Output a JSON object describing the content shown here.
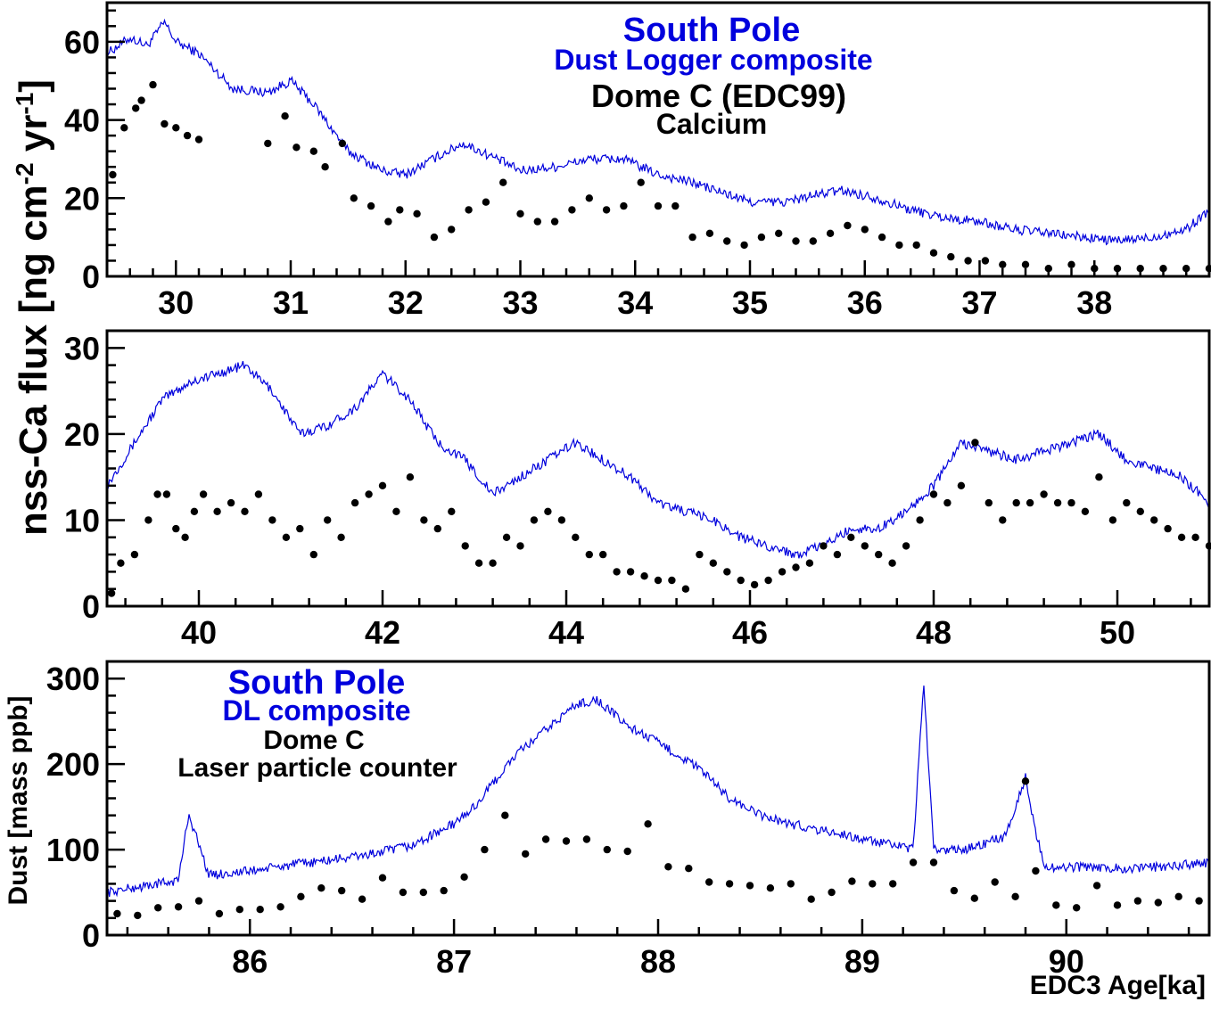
{
  "colors": {
    "dust_logger": "#0000dd",
    "dome_c": "#000000",
    "frame": "#000000"
  },
  "shared_ylabel_top": "nss-Ca flux [ng cm-2 yr-1]",
  "chart_data": [
    {
      "type": "line",
      "panel": "top",
      "annotations": [
        "South Pole",
        "Dust Logger composite",
        "Dome C (EDC99)",
        "Calcium"
      ],
      "xlim": [
        29.4,
        39.0
      ],
      "ylim": [
        0,
        70
      ],
      "xticks": [
        "30",
        "31",
        "32",
        "33",
        "34",
        "35",
        "36",
        "37",
        "38"
      ],
      "yticks": [
        "0",
        "20",
        "40",
        "60"
      ],
      "series": [
        {
          "name": "South Pole Dust Logger composite",
          "style": "line",
          "x": [
            29.4,
            29.6,
            29.75,
            29.9,
            30.0,
            30.2,
            30.5,
            30.8,
            31.0,
            31.2,
            31.5,
            31.8,
            32.0,
            32.3,
            32.5,
            32.8,
            33.0,
            33.3,
            33.6,
            33.9,
            34.2,
            34.5,
            34.8,
            35.0,
            35.3,
            35.6,
            35.8,
            36.1,
            36.4,
            36.7,
            37.0,
            37.3,
            37.6,
            37.9,
            38.2,
            38.5,
            38.8,
            39.0
          ],
          "y": [
            57,
            61,
            59,
            65,
            60,
            57,
            48,
            47,
            50,
            44,
            32,
            27,
            26,
            31,
            34,
            30,
            27,
            28,
            30,
            30,
            26,
            24,
            21,
            19,
            19,
            21,
            22,
            20,
            17,
            15,
            14,
            12,
            11,
            10,
            9,
            10,
            12,
            17
          ]
        },
        {
          "name": "Dome C (EDC99) Calcium",
          "style": "markers",
          "x": [
            29.45,
            29.55,
            29.65,
            29.7,
            29.8,
            29.9,
            30.0,
            30.1,
            30.2,
            30.8,
            30.95,
            31.05,
            31.2,
            31.3,
            31.45,
            31.55,
            31.7,
            31.85,
            31.95,
            32.1,
            32.25,
            32.4,
            32.55,
            32.7,
            32.85,
            33.0,
            33.15,
            33.3,
            33.45,
            33.6,
            33.75,
            33.9,
            34.05,
            34.2,
            34.35,
            34.5,
            34.65,
            34.8,
            34.95,
            35.1,
            35.25,
            35.4,
            35.55,
            35.7,
            35.85,
            36.0,
            36.15,
            36.3,
            36.45,
            36.6,
            36.75,
            36.9,
            37.05,
            37.2,
            37.4,
            37.6,
            37.8,
            38.0,
            38.2,
            38.4,
            38.6,
            38.8,
            39.0
          ],
          "y": [
            26,
            38,
            43,
            45,
            49,
            39,
            38,
            36,
            35,
            34,
            41,
            33,
            32,
            28,
            34,
            20,
            18,
            14,
            17,
            16,
            10,
            12,
            17,
            19,
            24,
            16,
            14,
            14,
            17,
            20,
            17,
            18,
            24,
            18,
            18,
            10,
            11,
            9,
            8,
            10,
            11,
            9,
            9,
            11,
            13,
            12,
            10,
            8,
            8,
            6,
            5,
            4,
            4,
            3,
            3,
            2,
            3,
            2,
            2,
            2,
            2,
            2,
            2
          ]
        }
      ]
    },
    {
      "type": "line",
      "panel": "middle",
      "xlim": [
        39.0,
        51.0
      ],
      "ylim": [
        0,
        32
      ],
      "xticks": [
        "40",
        "42",
        "44",
        "46",
        "48",
        "50"
      ],
      "yticks": [
        "0",
        "10",
        "20",
        "30"
      ],
      "series": [
        {
          "name": "South Pole Dust Logger composite",
          "style": "line",
          "x": [
            39.0,
            39.3,
            39.6,
            39.9,
            40.2,
            40.5,
            40.8,
            41.1,
            41.4,
            41.7,
            42.0,
            42.3,
            42.6,
            42.9,
            43.2,
            43.5,
            43.8,
            44.1,
            44.4,
            44.7,
            45.0,
            45.3,
            45.6,
            45.9,
            46.2,
            46.5,
            46.8,
            47.1,
            47.4,
            47.7,
            48.0,
            48.3,
            48.6,
            48.9,
            49.2,
            49.5,
            49.8,
            50.1,
            50.4,
            50.7,
            51.0
          ],
          "y": [
            14,
            19,
            24,
            26,
            27,
            28,
            25,
            20,
            21,
            23,
            27,
            24,
            19,
            17,
            13,
            15,
            17,
            19,
            17,
            15,
            12,
            11,
            10,
            8,
            7,
            6,
            7,
            9,
            9,
            11,
            14,
            19,
            18,
            17,
            18,
            19,
            20,
            17,
            16,
            15,
            12
          ]
        },
        {
          "name": "Dome C (EDC99) Calcium",
          "style": "markers",
          "x": [
            39.05,
            39.15,
            39.3,
            39.45,
            39.55,
            39.65,
            39.75,
            39.85,
            39.95,
            40.05,
            40.2,
            40.35,
            40.5,
            40.65,
            40.8,
            40.95,
            41.1,
            41.25,
            41.4,
            41.55,
            41.7,
            41.85,
            42.0,
            42.15,
            42.3,
            42.45,
            42.6,
            42.75,
            42.9,
            43.05,
            43.2,
            43.35,
            43.5,
            43.65,
            43.8,
            43.95,
            44.1,
            44.25,
            44.4,
            44.55,
            44.7,
            44.85,
            45.0,
            45.15,
            45.3,
            45.45,
            45.6,
            45.75,
            45.9,
            46.05,
            46.2,
            46.35,
            46.5,
            46.65,
            46.8,
            46.95,
            47.1,
            47.25,
            47.4,
            47.55,
            47.7,
            47.85,
            48.0,
            48.15,
            48.3,
            48.45,
            48.6,
            48.75,
            48.9,
            49.05,
            49.2,
            49.35,
            49.5,
            49.65,
            49.8,
            49.95,
            50.1,
            50.25,
            50.4,
            50.55,
            50.7,
            50.85,
            51.0
          ],
          "y": [
            1.5,
            5,
            6,
            10,
            13,
            13,
            9,
            8,
            11,
            13,
            11,
            12,
            11,
            13,
            10,
            8,
            9,
            6,
            10,
            8,
            12,
            13,
            14,
            11,
            15,
            10,
            9,
            11,
            7,
            5,
            5,
            8,
            7,
            10,
            11,
            10,
            8,
            6,
            6,
            4,
            4,
            3.5,
            3,
            3,
            2,
            6,
            5,
            4,
            3,
            2.5,
            3,
            4,
            4.5,
            5,
            7,
            6,
            8,
            7,
            6,
            5,
            7,
            10,
            13,
            12,
            14,
            19,
            12,
            10,
            12,
            12,
            13,
            12,
            12,
            11,
            15,
            10,
            12,
            11,
            10,
            9,
            8,
            8,
            7
          ]
        }
      ]
    },
    {
      "type": "line",
      "panel": "bottom",
      "annotations": [
        "South Pole",
        "DL composite",
        "Dome C",
        "Laser particle counter"
      ],
      "ylabel": "Dust [mass ppb]",
      "xlabel": "EDC3 Age[ka]",
      "xlim": [
        85.3,
        90.7
      ],
      "ylim": [
        0,
        320
      ],
      "xticks": [
        "86",
        "87",
        "88",
        "89",
        "90"
      ],
      "yticks": [
        "0",
        "100",
        "200",
        "300"
      ],
      "series": [
        {
          "name": "South Pole DL composite",
          "style": "line",
          "x": [
            85.3,
            85.5,
            85.65,
            85.7,
            85.8,
            86.0,
            86.2,
            86.4,
            86.6,
            86.8,
            86.9,
            87.0,
            87.1,
            87.2,
            87.3,
            87.45,
            87.6,
            87.7,
            87.85,
            88.0,
            88.2,
            88.35,
            88.5,
            88.65,
            88.75,
            88.9,
            89.0,
            89.15,
            89.25,
            89.3,
            89.35,
            89.5,
            89.7,
            89.8,
            89.85,
            89.9,
            90.1,
            90.3,
            90.5,
            90.7
          ],
          "y": [
            50,
            58,
            64,
            142,
            70,
            75,
            82,
            88,
            95,
            105,
            118,
            130,
            150,
            180,
            210,
            240,
            270,
            275,
            245,
            225,
            195,
            160,
            140,
            130,
            125,
            118,
            112,
            105,
            100,
            295,
            100,
            100,
            115,
            185,
            120,
            78,
            80,
            78,
            80,
            85
          ]
        },
        {
          "name": "Dome C Laser particle counter",
          "style": "markers",
          "x": [
            85.35,
            85.45,
            85.55,
            85.65,
            85.75,
            85.85,
            85.95,
            86.05,
            86.15,
            86.25,
            86.35,
            86.45,
            86.55,
            86.65,
            86.75,
            86.85,
            86.95,
            87.05,
            87.15,
            87.25,
            87.35,
            87.45,
            87.55,
            87.65,
            87.75,
            87.85,
            87.95,
            88.05,
            88.15,
            88.25,
            88.35,
            88.45,
            88.55,
            88.65,
            88.75,
            88.85,
            88.95,
            89.05,
            89.15,
            89.25,
            89.35,
            89.45,
            89.55,
            89.65,
            89.75,
            89.8,
            89.85,
            89.95,
            90.05,
            90.15,
            90.25,
            90.35,
            90.45,
            90.55,
            90.65
          ],
          "y": [
            25,
            23,
            32,
            33,
            40,
            25,
            30,
            30,
            33,
            45,
            55,
            52,
            42,
            67,
            50,
            50,
            52,
            68,
            100,
            140,
            95,
            112,
            110,
            112,
            100,
            98,
            130,
            80,
            78,
            62,
            60,
            58,
            55,
            60,
            42,
            50,
            63,
            60,
            60,
            85,
            85,
            52,
            43,
            62,
            45,
            180,
            75,
            35,
            32,
            58,
            35,
            40,
            38,
            45,
            40
          ]
        }
      ]
    }
  ]
}
